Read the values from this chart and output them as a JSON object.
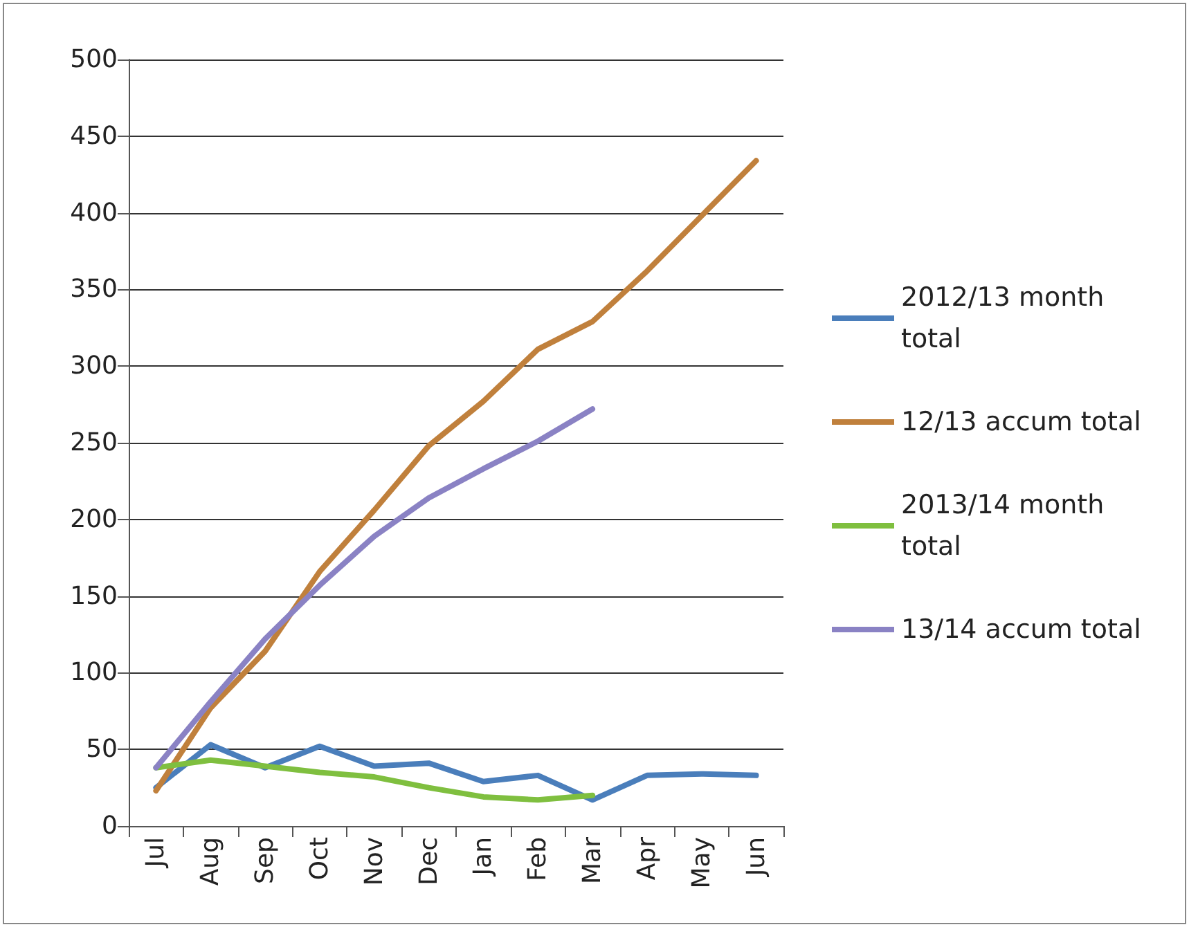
{
  "chart_data": {
    "type": "line",
    "categories": [
      "Jul",
      "Aug",
      "Sep",
      "Oct",
      "Nov",
      "Dec",
      "Jan",
      "Feb",
      "Mar",
      "Apr",
      "May",
      "Jun"
    ],
    "series": [
      {
        "name": "2012/13 month total",
        "color": "#4a7ebb",
        "values": [
          25,
          53,
          38,
          52,
          39,
          41,
          29,
          33,
          17,
          33,
          34,
          33
        ]
      },
      {
        "name": "12/13 accum total",
        "color": "#c0803c",
        "values": [
          23,
          77,
          114,
          166,
          206,
          248,
          277,
          311,
          329,
          362,
          398,
          434
        ]
      },
      {
        "name": "2013/14 month total",
        "color": "#7fbf3f",
        "values": [
          38,
          43,
          39,
          35,
          32,
          25,
          19,
          17,
          20,
          null,
          null,
          null
        ]
      },
      {
        "name": "13/14 accum total",
        "color": "#8a82c4",
        "values": [
          38,
          81,
          122,
          157,
          189,
          214,
          233,
          251,
          272,
          null,
          null,
          null
        ]
      }
    ],
    "ylim": [
      0,
      500
    ],
    "yticks": [
      0,
      50,
      100,
      150,
      200,
      250,
      300,
      350,
      400,
      450,
      500
    ],
    "grid": "y",
    "legend": "right",
    "marker": "none",
    "line_style": "solid"
  }
}
